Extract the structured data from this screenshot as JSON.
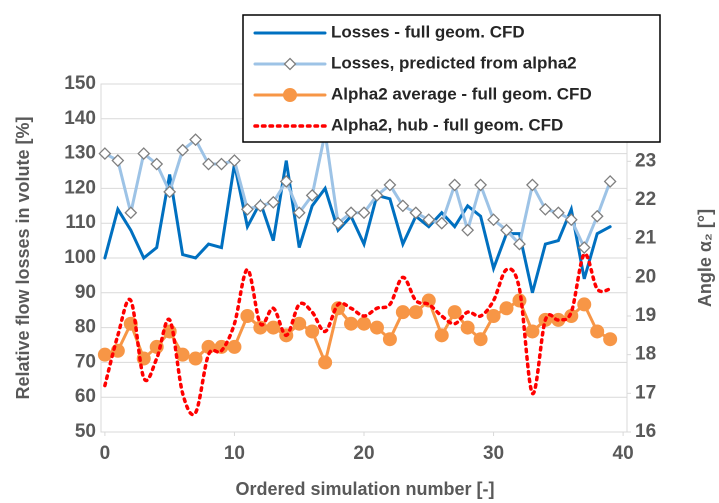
{
  "chart_data": {
    "type": "line",
    "xlabel": "Ordered simulation number [-]",
    "ylabel": "Relative flow losses in volute [%]",
    "y2label": "Angle α₂ [°]",
    "x": [
      0,
      1,
      2,
      3,
      4,
      5,
      6,
      7,
      8,
      9,
      10,
      11,
      12,
      13,
      14,
      15,
      16,
      17,
      18,
      19,
      20,
      21,
      22,
      23,
      24,
      25,
      26,
      27,
      28,
      29,
      30,
      31,
      32,
      33,
      34,
      35,
      36,
      37,
      38,
      39
    ],
    "xlim": [
      -0.3,
      40.3
    ],
    "xticks": [
      0,
      10,
      20,
      30,
      40
    ],
    "ylim": [
      50,
      150
    ],
    "yticks": [
      50,
      60,
      70,
      80,
      90,
      100,
      110,
      120,
      130,
      140,
      150
    ],
    "y2lim": [
      16,
      25
    ],
    "y2ticks": [
      16,
      17,
      18,
      19,
      20,
      21,
      22,
      23
    ],
    "legend": "upper right",
    "series": [
      {
        "name": "Losses - full geom. CFD",
        "color": "#0070c0",
        "marker": "none",
        "dash": "solid",
        "smooth": false,
        "values": [
          100,
          114,
          108,
          100,
          103,
          124,
          101,
          100,
          104,
          103,
          127,
          109,
          116,
          105,
          128,
          103,
          115,
          120,
          108,
          112,
          104,
          118,
          117,
          104,
          112,
          109,
          113,
          109,
          115,
          112,
          97,
          107,
          107,
          90,
          104,
          105,
          114,
          94,
          107,
          109
        ]
      },
      {
        "name": "Losses, predicted from alpha2",
        "color": "#9dc3e6",
        "marker": "diamond",
        "dash": "solid",
        "smooth": false,
        "values": [
          130,
          128,
          113,
          130,
          127,
          119,
          131,
          134,
          127,
          127,
          128,
          114,
          115,
          116,
          122,
          113,
          118,
          136,
          110,
          113,
          113,
          118,
          121,
          115,
          113,
          111,
          110,
          121,
          108,
          121,
          111,
          108,
          104,
          121,
          114,
          113,
          111,
          103,
          112,
          122
        ]
      },
      {
        "name": "Alpha2 average - full geom. CFD",
        "color": "#f79646",
        "marker": "circle",
        "dash": "solid",
        "smooth": false,
        "axis": "y2",
        "values": [
          18.0,
          18.1,
          18.8,
          17.9,
          18.2,
          18.6,
          18.0,
          17.9,
          18.2,
          18.2,
          18.2,
          19.0,
          18.7,
          18.7,
          18.5,
          18.8,
          18.6,
          17.8,
          19.2,
          18.8,
          18.8,
          18.7,
          18.4,
          19.1,
          19.1,
          19.4,
          18.5,
          19.1,
          18.7,
          18.4,
          19.0,
          19.2,
          19.4,
          18.6,
          18.9,
          18.9,
          19.0,
          19.3,
          18.6,
          18.4
        ]
      },
      {
        "name": "Alpha2, hub - full geom. CFD",
        "color": "#ff0000",
        "marker": "none",
        "dash": "dotted",
        "smooth": true,
        "axis": "y2",
        "values": [
          17.2,
          18.5,
          19.4,
          17.4,
          17.9,
          18.9,
          17.0,
          16.5,
          18.0,
          18.1,
          18.8,
          20.2,
          18.8,
          19.2,
          18.5,
          19.3,
          19.1,
          18.6,
          19.3,
          19.2,
          19.0,
          19.2,
          19.3,
          20.0,
          19.4,
          19.3,
          19.0,
          18.8,
          19.1,
          19.0,
          19.4,
          20.2,
          19.7,
          17.0,
          18.9,
          18.9,
          19.1,
          20.6,
          19.7,
          19.7
        ]
      }
    ]
  }
}
